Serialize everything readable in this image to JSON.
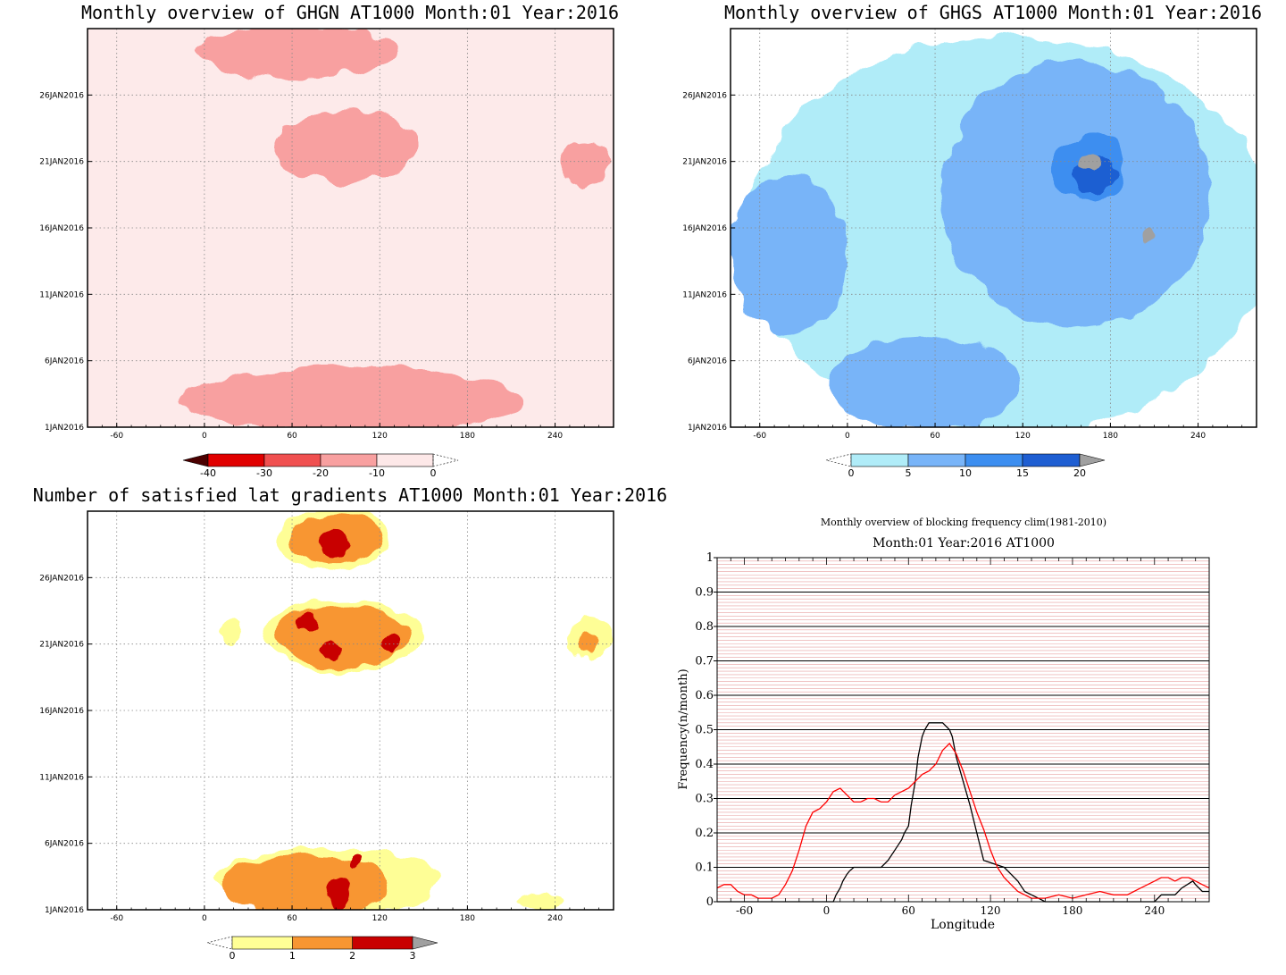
{
  "chart_data": [
    {
      "type": "heatmap",
      "title": "Monthly overview of GHGN AT1000 Month:01 Year:2016",
      "x_ticks": [
        "-60",
        "0",
        "60",
        "120",
        "180",
        "240"
      ],
      "x_tick_values": [
        -60,
        0,
        60,
        120,
        180,
        240
      ],
      "xlim": [
        -80,
        280
      ],
      "y_ticks": [
        "1JAN2016",
        "6JAN2016",
        "11JAN2016",
        "16JAN2016",
        "21JAN2016",
        "26JAN2016"
      ],
      "y_tick_values": [
        1,
        6,
        11,
        16,
        21,
        26
      ],
      "ylim": [
        1,
        31
      ],
      "grid": true,
      "colorbar": {
        "labels": [
          "-40",
          "-30",
          "-20",
          "-10",
          "0"
        ],
        "colors": [
          "#4b0000",
          "#e00000",
          "#f05050",
          "#f8a0a0",
          "#fde8e8"
        ]
      },
      "regions": [
        {
          "level": "0",
          "color": "#fdeaea",
          "x": [
            -80,
            280
          ],
          "y": [
            1,
            31
          ],
          "note": "widespread light pink background"
        },
        {
          "level": "-10",
          "color": "#f8a0a0",
          "center": [
            60,
            29.5
          ],
          "extent": [
            [
              -5,
              132
            ],
            [
              27,
              31
            ]
          ]
        },
        {
          "level": "-10",
          "color": "#f8a0a0",
          "center": [
            95,
            22
          ],
          "extent": [
            [
              47,
              145
            ],
            [
              19.5,
              25
            ]
          ]
        },
        {
          "level": "-10",
          "color": "#f8a0a0",
          "center": [
            75,
            2.5
          ],
          "extent": [
            [
              8,
              245
            ],
            [
              1,
              6
            ]
          ]
        },
        {
          "level": "-10",
          "color": "#f8a0a0",
          "center": [
            258,
            21
          ],
          "extent": [
            [
              245,
              280
            ],
            [
              19,
              22.5
            ]
          ]
        }
      ]
    },
    {
      "type": "heatmap",
      "title": "Monthly overview of GHGS AT1000 Month:01 Year:2016",
      "x_ticks": [
        "-60",
        "0",
        "60",
        "120",
        "180",
        "240"
      ],
      "x_tick_values": [
        -60,
        0,
        60,
        120,
        180,
        240
      ],
      "xlim": [
        -80,
        280
      ],
      "y_ticks": [
        "1JAN2016",
        "6JAN2016",
        "11JAN2016",
        "16JAN2016",
        "21JAN2016",
        "26JAN2016"
      ],
      "y_tick_values": [
        1,
        6,
        11,
        16,
        21,
        26
      ],
      "ylim": [
        1,
        31
      ],
      "grid": true,
      "colorbar": {
        "labels": [
          "0",
          "5",
          "10",
          "15",
          "20"
        ],
        "colors": [
          "#b0ecf8",
          "#78b4f8",
          "#3c8ef0",
          "#1e5ed2",
          "#a0a0a0"
        ]
      },
      "regions": [
        {
          "level": "0",
          "color": "#b0ecf8",
          "center": [
            120,
            15
          ],
          "extent": [
            [
              -80,
              280
            ],
            [
              1,
              31
            ]
          ],
          "note": "widespread light blue"
        },
        {
          "level": "5",
          "color": "#78b4f8",
          "center": [
            160,
            18
          ],
          "extent": [
            [
              60,
              245
            ],
            [
              9,
              29
            ]
          ]
        },
        {
          "level": "5",
          "color": "#78b4f8",
          "center": [
            40,
            4
          ],
          "extent": [
            [
              0,
              130
            ],
            [
              1,
              8
            ]
          ]
        },
        {
          "level": "5",
          "color": "#78b4f8",
          "center": [
            -40,
            14
          ],
          "extent": [
            [
              -80,
              0
            ],
            [
              8,
              20
            ]
          ]
        },
        {
          "level": "10",
          "color": "#3c8ef0",
          "center": [
            165,
            20.5
          ],
          "extent": [
            [
              140,
              190
            ],
            [
              18,
              23
            ]
          ]
        },
        {
          "level": "15",
          "color": "#1e5ed2",
          "center": [
            170,
            20
          ],
          "extent": [
            [
              155,
              185
            ],
            [
              18.5,
              21.5
            ]
          ]
        },
        {
          "level": "20",
          "color": "#a0a0a0",
          "center": [
            165,
            21
          ],
          "extent": [
            [
              160,
              175
            ],
            [
              20.2,
              21.6
            ]
          ]
        },
        {
          "level": "20",
          "color": "#a0a0a0",
          "center": [
            205,
            15.5
          ],
          "extent": [
            [
              200,
              210
            ],
            [
              15,
              16
            ]
          ]
        }
      ]
    },
    {
      "type": "heatmap",
      "title": "Number of satisfied lat gradients AT1000 Month:01 Year:2016",
      "x_ticks": [
        "-60",
        "0",
        "60",
        "120",
        "180",
        "240"
      ],
      "x_tick_values": [
        -60,
        0,
        60,
        120,
        180,
        240
      ],
      "xlim": [
        -80,
        280
      ],
      "y_ticks": [
        "1JAN2016",
        "6JAN2016",
        "11JAN2016",
        "16JAN2016",
        "21JAN2016",
        "26JAN2016"
      ],
      "y_tick_values": [
        1,
        6,
        11,
        16,
        21,
        26
      ],
      "ylim": [
        1,
        31
      ],
      "grid": true,
      "colorbar": {
        "labels": [
          "0",
          "1",
          "2",
          "3"
        ],
        "colors": [
          "#ffff96",
          "#f89632",
          "#c80000",
          "#a0a0a0"
        ]
      },
      "regions": [
        {
          "level": "1",
          "color": "#fefe96",
          "center": [
            85,
            29
          ],
          "extent": [
            [
              55,
              132
            ],
            [
              26.5,
              31
            ]
          ]
        },
        {
          "level": "2",
          "color": "#f89632",
          "center": [
            85,
            29
          ],
          "extent": [
            [
              65,
              128
            ],
            [
              27,
              30.5
            ]
          ]
        },
        {
          "level": "3",
          "color": "#c80000",
          "center": [
            88,
            28.7
          ],
          "extent": [
            [
              78,
              100
            ],
            [
              27.5,
              29.5
            ]
          ]
        },
        {
          "level": "1",
          "color": "#fefe96",
          "center": [
            95,
            21.5
          ],
          "extent": [
            [
              42,
              150
            ],
            [
              19,
              24.5
            ]
          ]
        },
        {
          "level": "2",
          "color": "#f89632",
          "center": [
            95,
            21.5
          ],
          "extent": [
            [
              48,
              140
            ],
            [
              19.3,
              24
            ]
          ]
        },
        {
          "level": "3",
          "color": "#c80000",
          "center": [
            70,
            22.5
          ],
          "extent": [
            [
              63,
              80
            ],
            [
              22,
              23.5
            ]
          ]
        },
        {
          "level": "3",
          "color": "#c80000",
          "center": [
            87,
            20.5
          ],
          "extent": [
            [
              80,
              93
            ],
            [
              19.8,
              21.2
            ]
          ]
        },
        {
          "level": "3",
          "color": "#c80000",
          "center": [
            128,
            21
          ],
          "extent": [
            [
              122,
              134
            ],
            [
              20.5,
              22
            ]
          ]
        },
        {
          "level": "1",
          "color": "#fefe96",
          "center": [
            18,
            22
          ],
          "extent": [
            [
              12,
              25
            ],
            [
              21,
              23
            ]
          ]
        },
        {
          "level": "1",
          "color": "#fefe96",
          "center": [
            265,
            21.5
          ],
          "extent": [
            [
              248,
              280
            ],
            [
              20,
              23
            ]
          ]
        },
        {
          "level": "2",
          "color": "#f89632",
          "center": [
            263,
            21
          ],
          "extent": [
            [
              255,
              270
            ],
            [
              20.3,
              21.8
            ]
          ]
        },
        {
          "level": "1",
          "color": "#fefe96",
          "center": [
            85,
            3
          ],
          "extent": [
            [
              8,
              160
            ],
            [
              1,
              6
            ]
          ]
        },
        {
          "level": "2",
          "color": "#f89632",
          "center": [
            70,
            2.5
          ],
          "extent": [
            [
              10,
              125
            ],
            [
              1,
              5.5
            ]
          ]
        },
        {
          "level": "3",
          "color": "#c80000",
          "center": [
            92,
            2.2
          ],
          "extent": [
            [
              84,
              100
            ],
            [
              1,
              3.5
            ]
          ]
        },
        {
          "level": "3",
          "color": "#c80000",
          "center": [
            103,
            4.8
          ],
          "extent": [
            [
              98,
              108
            ],
            [
              4.3,
              5.3
            ]
          ]
        },
        {
          "level": "1",
          "color": "#fefe96",
          "center": [
            230,
            1.6
          ],
          "extent": [
            [
              215,
              245
            ],
            [
              1,
              2.2
            ]
          ]
        }
      ]
    },
    {
      "type": "line",
      "title": "Monthly overview of blocking frequency clim(1981-2010)",
      "subtitle": "Month:01 Year:2016  AT1000",
      "xlabel": "Longitude",
      "ylabel": "Frequency(n/month)",
      "xlim": [
        -80,
        280
      ],
      "ylim": [
        0,
        1
      ],
      "x_ticks": [
        "-60",
        "0",
        "60",
        "120",
        "180",
        "240"
      ],
      "x_tick_values": [
        -60,
        0,
        60,
        120,
        180,
        240
      ],
      "y_ticks": [
        "0",
        "0.1",
        "0.2",
        "0.3",
        "0.4",
        "0.5",
        "0.6",
        "0.7",
        "0.8",
        "0.9",
        "1"
      ],
      "y_tick_values": [
        0,
        0.1,
        0.2,
        0.3,
        0.4,
        0.5,
        0.6,
        0.7,
        0.8,
        0.9,
        1
      ],
      "grid": true,
      "series": [
        {
          "name": "",
          "color": "#000000",
          "x": [
            -80,
            5,
            7,
            10,
            12,
            15,
            17,
            20,
            40,
            45,
            50,
            55,
            57,
            60,
            62,
            65,
            67,
            70,
            72,
            75,
            80,
            85,
            90,
            92,
            95,
            100,
            105,
            110,
            115,
            130,
            135,
            140,
            145,
            150,
            155,
            160,
            165,
            200,
            210,
            220,
            225,
            240,
            245,
            255,
            260,
            268,
            270,
            275,
            280
          ],
          "y": [
            0,
            0,
            0.02,
            0.04,
            0.06,
            0.08,
            0.09,
            0.1,
            0.1,
            0.12,
            0.15,
            0.18,
            0.2,
            0.22,
            0.28,
            0.35,
            0.42,
            0.48,
            0.5,
            0.52,
            0.52,
            0.52,
            0.5,
            0.48,
            0.42,
            0.35,
            0.28,
            0.2,
            0.12,
            0.1,
            0.08,
            0.06,
            0.03,
            0.02,
            0.01,
            0,
            0,
            0,
            0,
            0,
            0,
            0,
            0.02,
            0.02,
            0.04,
            0.06,
            0.05,
            0.03,
            0.03
          ]
        },
        {
          "name": "",
          "color": "#ff0000",
          "x": [
            -80,
            -75,
            -70,
            -65,
            -60,
            -55,
            -50,
            -45,
            -40,
            -35,
            -30,
            -25,
            -20,
            -15,
            -10,
            -5,
            0,
            5,
            10,
            15,
            20,
            25,
            30,
            35,
            40,
            45,
            50,
            55,
            60,
            65,
            70,
            75,
            80,
            85,
            90,
            95,
            100,
            105,
            110,
            115,
            120,
            125,
            130,
            135,
            140,
            145,
            150,
            155,
            160,
            170,
            180,
            190,
            200,
            210,
            220,
            230,
            240,
            245,
            250,
            255,
            260,
            265,
            270,
            275,
            280
          ],
          "y": [
            0.04,
            0.05,
            0.05,
            0.03,
            0.02,
            0.02,
            0.01,
            0.01,
            0.01,
            0.02,
            0.05,
            0.09,
            0.15,
            0.22,
            0.26,
            0.27,
            0.29,
            0.32,
            0.33,
            0.31,
            0.29,
            0.29,
            0.3,
            0.3,
            0.29,
            0.29,
            0.31,
            0.32,
            0.33,
            0.35,
            0.37,
            0.38,
            0.4,
            0.44,
            0.46,
            0.43,
            0.38,
            0.32,
            0.26,
            0.21,
            0.15,
            0.1,
            0.07,
            0.05,
            0.03,
            0.02,
            0.01,
            0.01,
            0.01,
            0.02,
            0.01,
            0.02,
            0.03,
            0.02,
            0.02,
            0.04,
            0.06,
            0.07,
            0.07,
            0.06,
            0.07,
            0.07,
            0.06,
            0.05,
            0.04
          ]
        }
      ]
    }
  ]
}
